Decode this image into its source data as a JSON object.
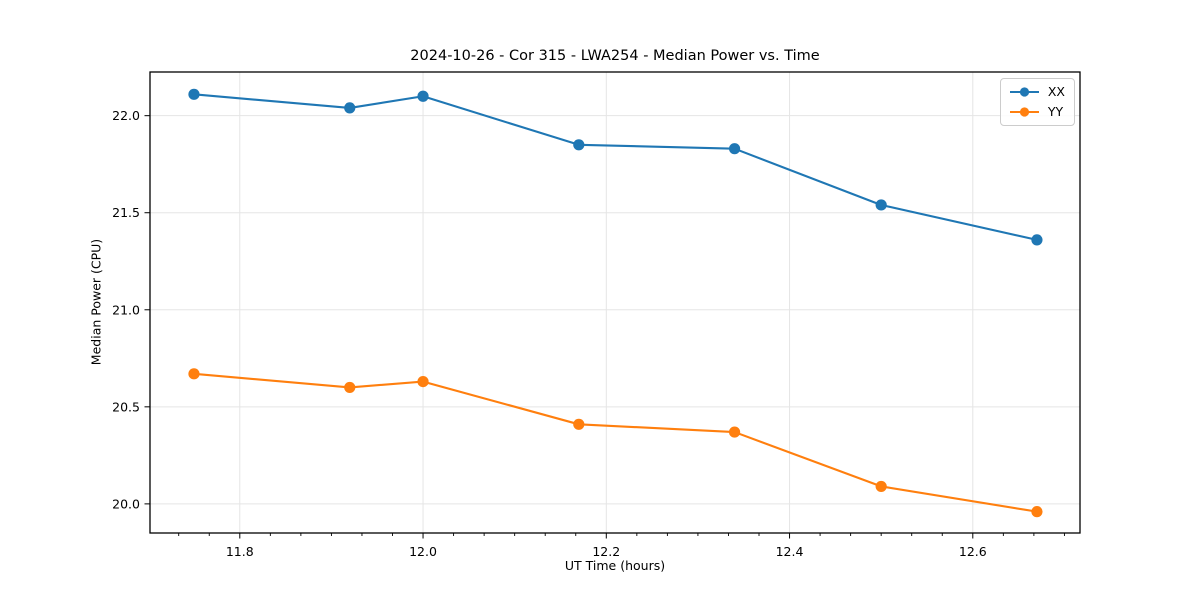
{
  "chart_data": {
    "type": "line",
    "title": "2024-10-26 - Cor 315 - LWA254 - Median Power vs. Time",
    "xlabel": "UT Time (hours)",
    "ylabel": "Median Power (CPU)",
    "x": [
      11.75,
      11.92,
      12.0,
      12.17,
      12.34,
      12.5,
      12.67
    ],
    "series": [
      {
        "name": "XX",
        "color": "#1f77b4",
        "marker": "circle",
        "values": [
          22.11,
          22.04,
          22.1,
          21.85,
          21.83,
          21.54,
          21.36
        ]
      },
      {
        "name": "YY",
        "color": "#ff7f0e",
        "marker": "circle",
        "values": [
          20.67,
          20.6,
          20.63,
          20.41,
          20.37,
          20.09,
          19.96
        ]
      }
    ],
    "xlim": [
      11.702,
      12.717
    ],
    "ylim": [
      19.85,
      22.225
    ],
    "xticks": [
      11.8,
      12.0,
      12.2,
      12.4,
      12.6
    ],
    "xtick_labels": [
      "11.8",
      "12.0",
      "12.2",
      "12.4",
      "12.6"
    ],
    "x_minor_divisions": 6,
    "yticks": [
      20.0,
      20.5,
      21.0,
      21.5,
      22.0
    ],
    "ytick_labels": [
      "20.0",
      "20.5",
      "21.0",
      "21.5",
      "22.0"
    ],
    "grid": true,
    "grid_color": "#e5e5e5",
    "spine_color": "#000000",
    "tick_color": "#000000",
    "text_color": "#000000",
    "background": "#ffffff",
    "legend_position": "upper right"
  }
}
